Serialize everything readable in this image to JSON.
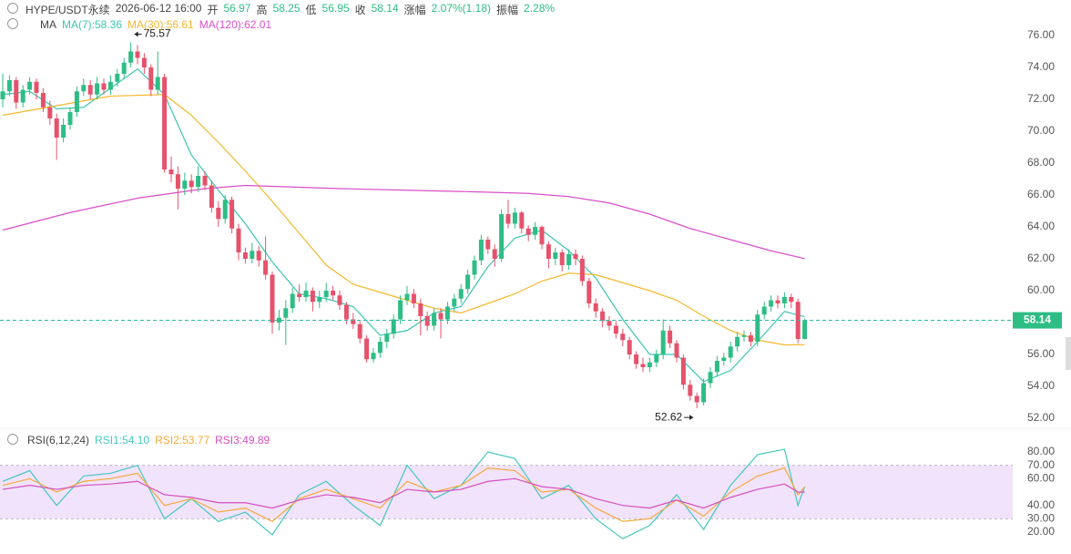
{
  "header": {
    "symbol": "HYPE/USDT永续",
    "time": "2026-06-12 16:00",
    "fields": [
      {
        "label": "开",
        "value": "56.97"
      },
      {
        "label": "高",
        "value": "58.25"
      },
      {
        "label": "低",
        "value": "56.95"
      },
      {
        "label": "收",
        "value": "58.14"
      },
      {
        "label": "涨幅",
        "value": "2.07%(1.18)"
      },
      {
        "label": "振幅",
        "value": "2.28%"
      }
    ]
  },
  "chart_data": [
    {
      "type": "candlestick",
      "legend_title": "MA",
      "up_color": "#2ebd85",
      "down_color": "#e5526b",
      "last_price": 58.14,
      "ylim": [
        52,
        76
      ],
      "yticks": [
        {
          "value": 52,
          "label": "52.00"
        },
        {
          "value": 54,
          "label": "54.00"
        },
        {
          "value": 56,
          "label": "56.00"
        },
        {
          "value": 58,
          "label": "58.00"
        },
        {
          "value": 60,
          "label": "60.00"
        },
        {
          "value": 62,
          "label": "62.00"
        },
        {
          "value": 64,
          "label": "64.00"
        },
        {
          "value": 66,
          "label": "66.00"
        },
        {
          "value": 68,
          "label": "68.00"
        },
        {
          "value": 70,
          "label": "70.00"
        },
        {
          "value": 72,
          "label": "72.00"
        },
        {
          "value": 74,
          "label": "74.00"
        },
        {
          "value": 76,
          "label": "76.00"
        }
      ],
      "annotations": [
        {
          "value": 75.57,
          "index": 19,
          "position": "right"
        },
        {
          "value": 52.62,
          "index": 103,
          "position": "left"
        }
      ],
      "candles": [
        [
          72.0,
          73.6,
          71.5,
          72.5
        ],
        [
          72.5,
          73.5,
          72.2,
          73.2
        ],
        [
          73.2,
          73.4,
          71.4,
          71.8
        ],
        [
          71.8,
          72.9,
          71.5,
          72.6
        ],
        [
          72.6,
          73.4,
          72.3,
          73.1
        ],
        [
          73.1,
          73.3,
          72.0,
          72.4
        ],
        [
          72.4,
          72.7,
          71.2,
          71.5
        ],
        [
          71.5,
          71.9,
          70.4,
          70.8
        ],
        [
          70.8,
          71.1,
          68.2,
          69.6
        ],
        [
          69.6,
          70.8,
          69.3,
          70.4
        ],
        [
          70.4,
          71.5,
          70.1,
          71.2
        ],
        [
          71.2,
          72.8,
          70.9,
          72.5
        ],
        [
          72.5,
          73.3,
          72.2,
          72.9
        ],
        [
          72.9,
          73.2,
          72.0,
          72.3
        ],
        [
          72.3,
          73.4,
          72.0,
          73.0
        ],
        [
          73.0,
          73.3,
          72.3,
          72.6
        ],
        [
          72.6,
          73.5,
          72.3,
          73.1
        ],
        [
          73.1,
          73.9,
          72.8,
          73.6
        ],
        [
          73.6,
          74.6,
          73.3,
          74.3
        ],
        [
          74.3,
          75.57,
          74.0,
          75.0
        ],
        [
          75.0,
          75.4,
          74.2,
          74.6
        ],
        [
          74.6,
          74.9,
          73.6,
          74.0
        ],
        [
          74.0,
          74.2,
          72.2,
          72.6
        ],
        [
          72.6,
          75.0,
          72.3,
          73.4
        ],
        [
          73.4,
          73.6,
          67.4,
          67.6
        ],
        [
          67.6,
          68.4,
          66.8,
          67.3
        ],
        [
          67.3,
          67.8,
          65.1,
          66.4
        ],
        [
          66.4,
          67.4,
          66.0,
          66.9
        ],
        [
          66.9,
          67.3,
          66.1,
          66.5
        ],
        [
          66.5,
          67.8,
          66.2,
          67.2
        ],
        [
          67.2,
          67.5,
          66.3,
          66.6
        ],
        [
          66.6,
          66.9,
          64.9,
          65.2
        ],
        [
          65.2,
          65.6,
          64.0,
          64.5
        ],
        [
          64.5,
          66.0,
          64.2,
          65.7
        ],
        [
          65.7,
          65.9,
          63.6,
          63.9
        ],
        [
          63.9,
          64.2,
          61.9,
          62.4
        ],
        [
          62.4,
          62.7,
          61.7,
          62.0
        ],
        [
          62.0,
          63.0,
          61.7,
          62.5
        ],
        [
          62.5,
          62.8,
          61.5,
          61.9
        ],
        [
          61.9,
          63.4,
          60.7,
          61.0
        ],
        [
          61.0,
          61.2,
          57.3,
          58.0
        ],
        [
          58.0,
          58.8,
          57.5,
          58.3
        ],
        [
          58.3,
          59.4,
          56.6,
          58.9
        ],
        [
          58.9,
          60.2,
          58.6,
          59.8
        ],
        [
          59.8,
          60.4,
          59.3,
          59.6
        ],
        [
          59.6,
          60.5,
          59.3,
          60.0
        ],
        [
          60.0,
          60.2,
          58.7,
          59.3
        ],
        [
          59.3,
          60.0,
          58.9,
          59.6
        ],
        [
          59.6,
          60.5,
          59.3,
          60.0
        ],
        [
          60.0,
          60.3,
          59.4,
          59.7
        ],
        [
          59.7,
          60.0,
          58.8,
          59.1
        ],
        [
          59.1,
          59.3,
          57.9,
          58.2
        ],
        [
          58.2,
          58.6,
          57.6,
          57.9
        ],
        [
          57.9,
          58.1,
          56.7,
          57.0
        ],
        [
          57.0,
          57.2,
          55.5,
          55.7
        ],
        [
          55.7,
          56.4,
          55.5,
          56.1
        ],
        [
          56.1,
          57.1,
          55.8,
          56.8
        ],
        [
          56.8,
          57.6,
          56.4,
          57.3
        ],
        [
          57.3,
          58.5,
          57.0,
          58.2
        ],
        [
          58.2,
          59.7,
          57.9,
          59.4
        ],
        [
          59.4,
          60.3,
          59.1,
          59.8
        ],
        [
          59.8,
          60.1,
          58.9,
          59.2
        ],
        [
          59.2,
          59.5,
          57.2,
          58.4
        ],
        [
          58.4,
          58.7,
          57.5,
          57.8
        ],
        [
          57.8,
          58.9,
          57.5,
          58.6
        ],
        [
          58.6,
          58.9,
          57.0,
          58.2
        ],
        [
          58.2,
          59.3,
          57.9,
          59.0
        ],
        [
          59.0,
          59.8,
          58.7,
          59.5
        ],
        [
          59.5,
          60.4,
          59.2,
          60.1
        ],
        [
          60.1,
          61.3,
          59.8,
          61.0
        ],
        [
          61.0,
          62.2,
          60.7,
          61.9
        ],
        [
          61.9,
          63.5,
          61.6,
          63.2
        ],
        [
          63.2,
          63.4,
          62.3,
          62.6
        ],
        [
          62.6,
          62.9,
          61.5,
          62.0
        ],
        [
          62.0,
          65.1,
          61.8,
          64.8
        ],
        [
          64.8,
          65.7,
          63.9,
          64.2
        ],
        [
          64.2,
          65.2,
          63.9,
          64.9
        ],
        [
          64.9,
          65.0,
          63.6,
          63.9
        ],
        [
          63.9,
          64.1,
          63.1,
          63.5
        ],
        [
          63.5,
          64.3,
          63.2,
          64.0
        ],
        [
          64.0,
          64.1,
          62.6,
          62.9
        ],
        [
          62.9,
          63.1,
          61.4,
          62.0
        ],
        [
          62.0,
          62.7,
          61.6,
          62.4
        ],
        [
          62.4,
          62.6,
          61.2,
          61.6
        ],
        [
          61.6,
          62.6,
          61.3,
          62.3
        ],
        [
          62.3,
          62.6,
          61.6,
          62.0
        ],
        [
          62.0,
          62.2,
          60.3,
          60.6
        ],
        [
          60.6,
          60.8,
          58.9,
          59.2
        ],
        [
          59.2,
          59.5,
          58.3,
          58.7
        ],
        [
          58.7,
          58.9,
          57.7,
          58.1
        ],
        [
          58.1,
          58.4,
          57.5,
          57.8
        ],
        [
          57.8,
          58.1,
          57.0,
          57.3
        ],
        [
          57.3,
          57.6,
          56.5,
          56.9
        ],
        [
          56.9,
          57.1,
          55.7,
          56.0
        ],
        [
          56.0,
          56.2,
          55.1,
          55.4
        ],
        [
          55.4,
          55.8,
          54.9,
          55.2
        ],
        [
          55.2,
          55.8,
          54.9,
          55.5
        ],
        [
          55.5,
          56.3,
          55.2,
          56.0
        ],
        [
          56.0,
          58.2,
          55.7,
          57.5
        ],
        [
          57.5,
          57.8,
          56.4,
          56.7
        ],
        [
          56.7,
          56.9,
          55.5,
          55.8
        ],
        [
          55.8,
          56.0,
          53.8,
          54.1
        ],
        [
          54.1,
          54.4,
          53.1,
          53.4
        ],
        [
          53.4,
          53.6,
          52.62,
          53.0
        ],
        [
          53.0,
          54.5,
          52.8,
          54.2
        ],
        [
          54.2,
          55.2,
          53.9,
          54.9
        ],
        [
          54.9,
          55.9,
          54.6,
          55.6
        ],
        [
          55.6,
          56.1,
          55.3,
          55.8
        ],
        [
          55.8,
          56.8,
          55.5,
          56.5
        ],
        [
          56.5,
          57.4,
          56.2,
          57.1
        ],
        [
          57.1,
          57.5,
          56.8,
          57.2
        ],
        [
          57.2,
          57.4,
          56.5,
          56.8
        ],
        [
          56.8,
          58.8,
          56.5,
          58.5
        ],
        [
          58.5,
          59.3,
          58.2,
          59.0
        ],
        [
          59.0,
          59.7,
          58.7,
          59.4
        ],
        [
          59.4,
          59.7,
          58.9,
          59.2
        ],
        [
          59.2,
          59.9,
          58.9,
          59.6
        ],
        [
          59.6,
          59.8,
          58.9,
          59.3
        ],
        [
          59.3,
          59.5,
          56.7,
          56.97
        ],
        [
          56.97,
          58.25,
          56.95,
          58.14
        ]
      ],
      "series": [
        {
          "name": "MA(7):58.36",
          "color": "#3ec5b0",
          "x": [
            0,
            4,
            8,
            12,
            16,
            20,
            24,
            28,
            32,
            36,
            40,
            44,
            48,
            52,
            56,
            60,
            64,
            68,
            72,
            76,
            80,
            84,
            88,
            92,
            96,
            100,
            104,
            108,
            112,
            116,
            119
          ],
          "values": [
            72.3,
            72.5,
            71.4,
            71.5,
            72.7,
            73.9,
            72.3,
            68.5,
            66.3,
            64.2,
            61.8,
            59.8,
            59.5,
            59.0,
            57.2,
            57.5,
            58.6,
            59.0,
            61.5,
            63.3,
            63.8,
            62.5,
            60.8,
            58.2,
            56.0,
            56.0,
            54.3,
            55.0,
            56.8,
            58.7,
            58.36
          ]
        },
        {
          "name": "MA(30):56.61",
          "color": "#f5b82e",
          "x": [
            0,
            8,
            16,
            24,
            28,
            32,
            36,
            40,
            44,
            48,
            52,
            56,
            60,
            64,
            68,
            72,
            76,
            80,
            84,
            88,
            92,
            96,
            100,
            104,
            108,
            112,
            116,
            119
          ],
          "values": [
            71.0,
            71.6,
            72.2,
            72.3,
            71.0,
            69.3,
            67.5,
            65.6,
            63.6,
            61.6,
            60.4,
            59.9,
            59.4,
            58.9,
            58.6,
            59.2,
            59.8,
            60.6,
            61.1,
            61.0,
            60.5,
            60.0,
            59.4,
            58.4,
            57.5,
            56.9,
            56.6,
            56.61
          ]
        },
        {
          "name": "MA(120):62.01",
          "color": "#d94fc8",
          "x": [
            0,
            10,
            20,
            30,
            36,
            50,
            60,
            70,
            78,
            84,
            90,
            96,
            102,
            108,
            114,
            119
          ],
          "values": [
            63.8,
            64.9,
            65.8,
            66.4,
            66.6,
            66.4,
            66.3,
            66.2,
            66.1,
            65.9,
            65.5,
            64.8,
            63.9,
            63.2,
            62.5,
            62.01
          ]
        }
      ]
    },
    {
      "type": "line",
      "title": "RSI(6,12,24)",
      "ylim": [
        20,
        80
      ],
      "band": [
        30,
        70
      ],
      "band_color": "#f1e3fb",
      "yticks": [
        {
          "value": 20,
          "label": "20.00"
        },
        {
          "value": 30,
          "label": "30.00"
        },
        {
          "value": 40,
          "label": "40.00"
        },
        {
          "value": 60,
          "label": "60.00"
        },
        {
          "value": 70,
          "label": "70.00"
        },
        {
          "value": 80,
          "label": "80.00"
        }
      ],
      "series": [
        {
          "name": "RSI1:54.10",
          "color": "#45c7c0",
          "x": [
            0,
            4,
            8,
            12,
            16,
            20,
            24,
            28,
            32,
            36,
            40,
            44,
            48,
            52,
            56,
            60,
            64,
            68,
            72,
            76,
            80,
            84,
            88,
            92,
            96,
            100,
            104,
            108,
            112,
            116,
            118,
            119
          ],
          "values": [
            58,
            66,
            40,
            62,
            64,
            70,
            30,
            45,
            28,
            35,
            18,
            48,
            58,
            40,
            25,
            70,
            45,
            55,
            80,
            75,
            45,
            55,
            30,
            15,
            25,
            48,
            22,
            55,
            78,
            82,
            40,
            54.1
          ]
        },
        {
          "name": "RSI2:53.77",
          "color": "#f4a93c",
          "x": [
            0,
            4,
            8,
            12,
            16,
            20,
            24,
            28,
            32,
            36,
            40,
            44,
            48,
            52,
            56,
            60,
            64,
            68,
            72,
            76,
            80,
            84,
            88,
            92,
            96,
            100,
            104,
            108,
            112,
            116,
            118,
            119
          ],
          "values": [
            55,
            60,
            50,
            58,
            60,
            64,
            40,
            45,
            35,
            38,
            28,
            45,
            52,
            45,
            38,
            58,
            50,
            55,
            68,
            66,
            50,
            52,
            38,
            28,
            30,
            44,
            32,
            50,
            62,
            68,
            48,
            53.77
          ]
        },
        {
          "name": "RSI3:49.89",
          "color": "#d54fbd",
          "x": [
            0,
            4,
            8,
            12,
            16,
            20,
            24,
            28,
            32,
            36,
            40,
            44,
            48,
            52,
            56,
            60,
            64,
            68,
            72,
            76,
            80,
            84,
            88,
            92,
            96,
            100,
            104,
            108,
            112,
            116,
            118,
            119
          ],
          "values": [
            52,
            55,
            52,
            55,
            56,
            58,
            48,
            46,
            42,
            42,
            38,
            44,
            48,
            46,
            42,
            52,
            50,
            52,
            58,
            60,
            54,
            52,
            45,
            40,
            38,
            44,
            38,
            46,
            52,
            56,
            50,
            49.89
          ]
        }
      ]
    }
  ]
}
